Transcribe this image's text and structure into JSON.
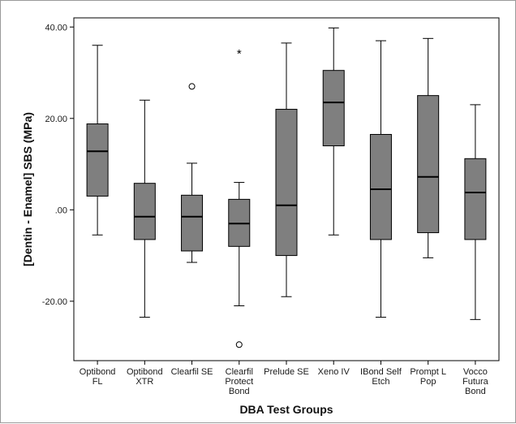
{
  "chart_data": {
    "type": "boxplot",
    "xlabel": "DBA Test Groups",
    "ylabel": "[Dentin - Enamel] SBS (MPa)",
    "ylim": [
      -33,
      42
    ],
    "yticks": [
      {
        "value": 40,
        "label": "40.00"
      },
      {
        "value": 20,
        "label": "20.00"
      },
      {
        "value": 0,
        "label": ".00"
      },
      {
        "value": -20,
        "label": "-20.00"
      }
    ],
    "box_color": "#7f7f7f",
    "grid": false,
    "groups": [
      {
        "label": [
          "Optibond",
          "FL"
        ],
        "whisker_low": -5.5,
        "q1": 3.0,
        "median": 12.8,
        "q3": 18.8,
        "whisker_high": 36.0,
        "outliers": [],
        "extremes": []
      },
      {
        "label": [
          "Optibond",
          "XTR"
        ],
        "whisker_low": -23.5,
        "q1": -6.5,
        "median": -1.5,
        "q3": 5.8,
        "whisker_high": 24.0,
        "outliers": [],
        "extremes": []
      },
      {
        "label": [
          "Clearfil SE"
        ],
        "whisker_low": -11.5,
        "q1": -9.0,
        "median": -1.5,
        "q3": 3.2,
        "whisker_high": 10.2,
        "outliers": [
          27.0
        ],
        "extremes": []
      },
      {
        "label": [
          "Clearfil",
          "Protect",
          "Bond"
        ],
        "whisker_low": -21.0,
        "q1": -8.0,
        "median": -3.0,
        "q3": 2.3,
        "whisker_high": 6.0,
        "outliers": [
          -29.5
        ],
        "extremes": [
          34.5
        ]
      },
      {
        "label": [
          "Prelude SE"
        ],
        "whisker_low": -19.0,
        "q1": -10.0,
        "median": 1.0,
        "q3": 22.0,
        "whisker_high": 36.5,
        "outliers": [],
        "extremes": []
      },
      {
        "label": [
          "Xeno IV"
        ],
        "whisker_low": -5.5,
        "q1": 14.0,
        "median": 23.5,
        "q3": 30.5,
        "whisker_high": 39.8,
        "outliers": [],
        "extremes": []
      },
      {
        "label": [
          "IBond Self",
          "Etch"
        ],
        "whisker_low": -23.5,
        "q1": -6.5,
        "median": 4.5,
        "q3": 16.5,
        "whisker_high": 37.0,
        "outliers": [],
        "extremes": []
      },
      {
        "label": [
          "Prompt L",
          "Pop"
        ],
        "whisker_low": -10.5,
        "q1": -5.0,
        "median": 7.2,
        "q3": 25.0,
        "whisker_high": 37.5,
        "outliers": [],
        "extremes": []
      },
      {
        "label": [
          "Vocco",
          "Futura",
          "Bond"
        ],
        "whisker_low": -24.0,
        "q1": -6.5,
        "median": 3.8,
        "q3": 11.2,
        "whisker_high": 23.0,
        "outliers": [],
        "extremes": []
      }
    ]
  }
}
